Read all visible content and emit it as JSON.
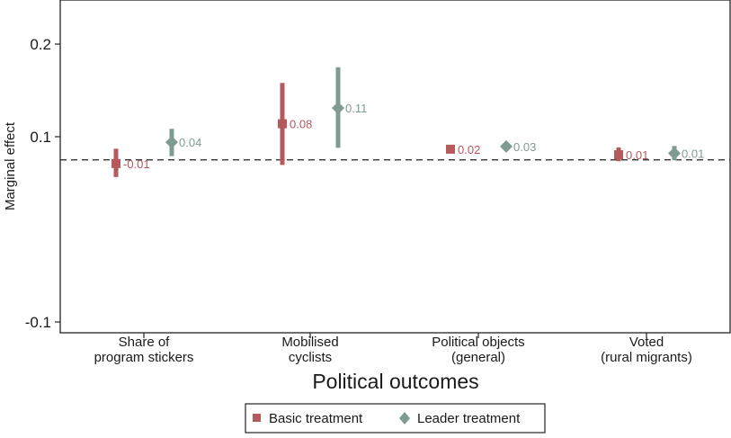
{
  "chart_data": {
    "type": "scatter",
    "xlabel": "Political outcomes",
    "ylabel": "Marginal effect",
    "ylim": [
      -0.1,
      0.23
    ],
    "yticks": [
      {
        "value": 0.2,
        "label": "0.2"
      },
      {
        "value": 0.1,
        "label": "0.1"
      },
      {
        "value": -0.1,
        "label": "-0.1"
      }
    ],
    "reference_line": {
      "value": 0.075,
      "style": "dashed"
    },
    "grid": false,
    "legend_position": "bottom",
    "categories": [
      {
        "line1": "Share of",
        "line2": "program stickers"
      },
      {
        "line1": "Mobilised",
        "line2": "cyclists"
      },
      {
        "line1": "Political objects",
        "line2": "(general)"
      },
      {
        "line1": "Voted",
        "line2": "(rural migrants)"
      }
    ],
    "series": [
      {
        "name": "Basic treatment",
        "marker": "square",
        "color": "#b5595d",
        "points": [
          {
            "estimate": 0.071,
            "ci": [
              0.0565,
              0.087
            ],
            "label": "-0.01"
          },
          {
            "estimate": 0.114,
            "ci": [
              0.0695,
              0.158
            ],
            "label": "0.08"
          },
          {
            "estimate": 0.0865,
            "ci": [
              0.0865,
              0.0865
            ],
            "label": "0.02"
          },
          {
            "estimate": 0.0805,
            "ci": [
              0.0735,
              0.0885
            ],
            "label": "0.01"
          }
        ]
      },
      {
        "name": "Leader treatment",
        "marker": "diamond",
        "color": "#7f9c92",
        "points": [
          {
            "estimate": 0.094,
            "ci": [
              0.079,
              0.1085
            ],
            "label": "0.04"
          },
          {
            "estimate": 0.131,
            "ci": [
              0.088,
              0.175
            ],
            "label": "0.11"
          },
          {
            "estimate": 0.0895,
            "ci": [
              0.0895,
              0.0895
            ],
            "label": "0.03"
          },
          {
            "estimate": 0.082,
            "ci": [
              0.0745,
              0.09
            ],
            "label": "0.01"
          }
        ]
      }
    ]
  }
}
